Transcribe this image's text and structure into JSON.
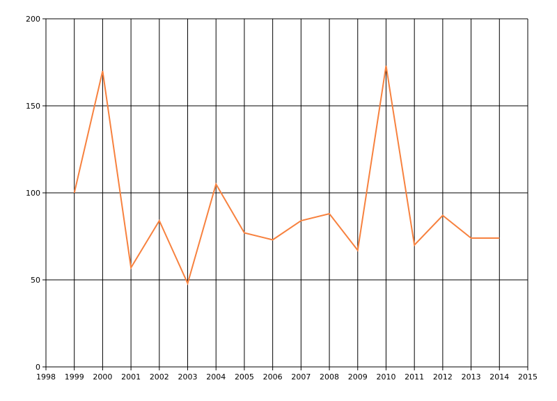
{
  "chart_data": {
    "type": "line",
    "x": [
      1999,
      2000,
      2001,
      2002,
      2003,
      2004,
      2005,
      2006,
      2007,
      2008,
      2009,
      2010,
      2011,
      2012,
      2013,
      2014
    ],
    "series": [
      {
        "color": "#f7813e",
        "values": [
          100,
          170,
          57,
          84,
          48,
          105,
          77,
          73,
          84,
          88,
          67,
          173,
          70,
          87,
          74,
          74
        ]
      }
    ],
    "xlim": [
      1998,
      2015
    ],
    "xticks": [
      1998,
      1999,
      2000,
      2001,
      2002,
      2003,
      2004,
      2005,
      2006,
      2007,
      2008,
      2009,
      2010,
      2011,
      2012,
      2013,
      2014,
      2015
    ],
    "ylim": [
      0,
      200
    ],
    "yticks": [
      0,
      50,
      100,
      150,
      200
    ],
    "grid": true
  }
}
